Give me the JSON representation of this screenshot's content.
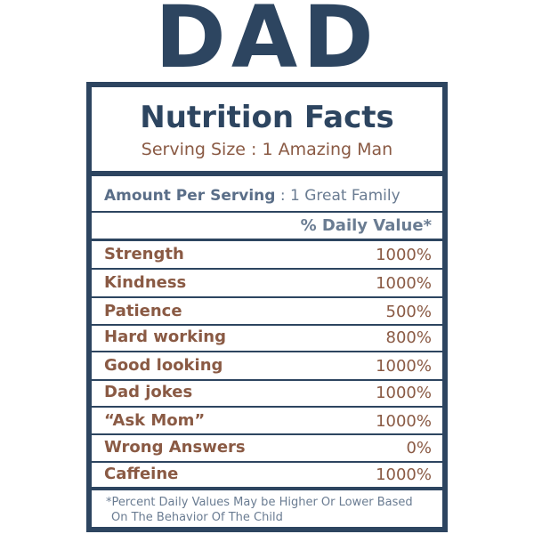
{
  "title": "DAD",
  "label": {
    "heading": "Nutrition Facts",
    "serving_size": "Serving Size : 1 Amazing Man",
    "amount_per_serving_label": "Amount Per Serving",
    "amount_per_serving_value": ": 1 Great Family",
    "daily_value_header": "% Daily Value*",
    "rows": [
      {
        "name": "Strength",
        "value": "1000%"
      },
      {
        "name": "Kindness",
        "value": "1000%"
      },
      {
        "name": "Patience",
        "value": "500%"
      },
      {
        "name": "Hard working",
        "value": "800%"
      },
      {
        "name": "Good looking",
        "value": "1000%"
      },
      {
        "name": "Dad jokes",
        "value": "1000%"
      },
      {
        "name": "“Ask Mom”",
        "value": "1000%"
      },
      {
        "name": "Wrong Answers",
        "value": "0%"
      },
      {
        "name": "Caffeine",
        "value": "1000%"
      }
    ],
    "footnote_line1": "*Percent Daily Values May be Higher Or Lower Based",
    "footnote_line2": "On The Behavior Of The Child"
  },
  "colors": {
    "navy": "#2d4560",
    "brown": "#8a5a44",
    "slate": "#6a7c92"
  }
}
